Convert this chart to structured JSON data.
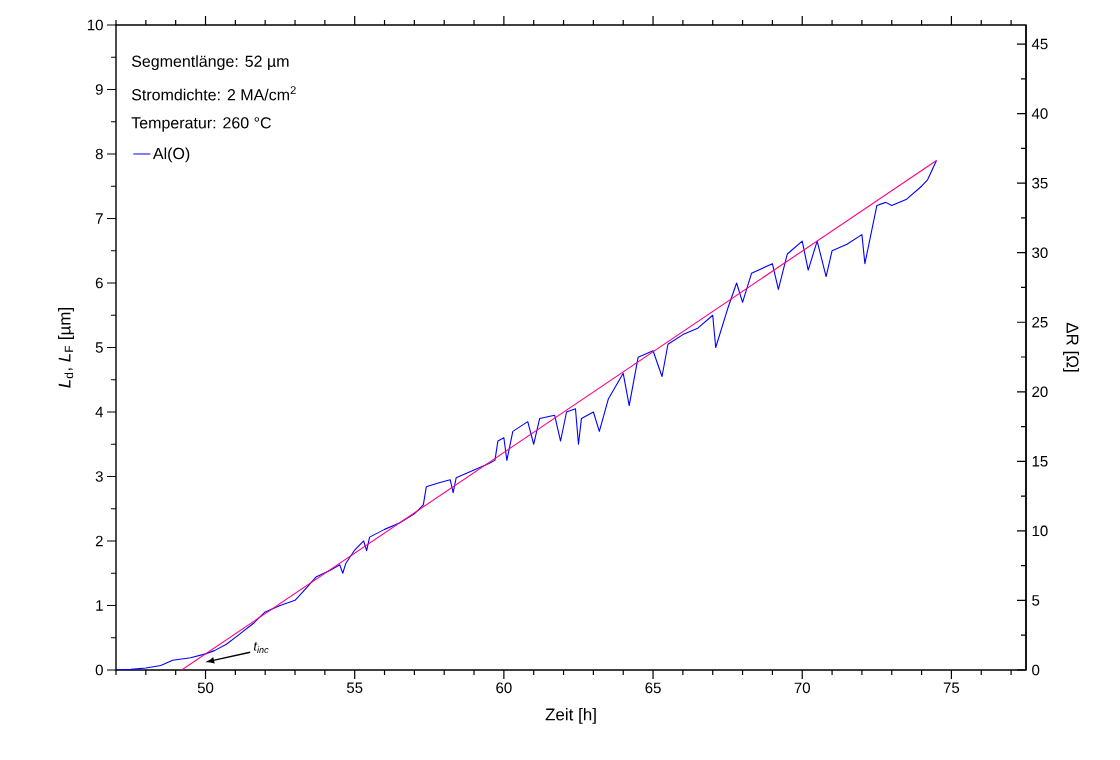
{
  "chart_data": {
    "type": "line",
    "xlabel": "Zeit [h]",
    "ylabel": "*L*$_{d}$, *L*$_{F}$ [µm]",
    "y2label": "ΔR [Ω]",
    "annotations": [
      "Segmentlänge: 52 µm",
      "Stromdichte: 2 MA/cm$^{2}$",
      "Temperatur: 260 °C",
      "t$_{inc}$"
    ],
    "legend": "top left",
    "marker": "none",
    "line_style": "solid",
    "grid": false,
    "xlim": [
      47,
      77.5
    ],
    "ylim": [
      0,
      10
    ],
    "y2lim": [
      0,
      46.37
    ],
    "xticks": [
      {
        "value": 47,
        "label": null
      },
      {
        "value": 48,
        "label": null
      },
      {
        "value": 49,
        "label": null
      },
      50,
      {
        "value": 51,
        "label": null
      },
      {
        "value": 52,
        "label": null
      },
      {
        "value": 53,
        "label": null
      },
      {
        "value": 54,
        "label": null
      },
      55,
      {
        "value": 56,
        "label": null
      },
      {
        "value": 57,
        "label": null
      },
      {
        "value": 58,
        "label": null
      },
      {
        "value": 59,
        "label": null
      },
      60,
      {
        "value": 61,
        "label": null
      },
      {
        "value": 62,
        "label": null
      },
      {
        "value": 63,
        "label": null
      },
      {
        "value": 64,
        "label": null
      },
      65,
      {
        "value": 66,
        "label": null
      },
      {
        "value": 67,
        "label": null
      },
      {
        "value": 68,
        "label": null
      },
      {
        "value": 69,
        "label": null
      },
      70,
      {
        "value": 71,
        "label": null
      },
      {
        "value": 72,
        "label": null
      },
      {
        "value": 73,
        "label": null
      },
      {
        "value": 74,
        "label": null
      },
      75,
      {
        "value": 76,
        "label": null
      },
      {
        "value": 77,
        "label": null
      }
    ],
    "yticks": [
      0,
      {
        "value": 0.5,
        "label": null
      },
      1,
      {
        "value": 1.5,
        "label": null
      },
      2,
      {
        "value": 2.5,
        "label": null
      },
      3,
      {
        "value": 3.5,
        "label": null
      },
      4,
      {
        "value": 4.5,
        "label": null
      },
      5,
      {
        "value": 5.5,
        "label": null
      },
      6,
      {
        "value": 6.5,
        "label": null
      },
      7,
      {
        "value": 7.5,
        "label": null
      },
      8,
      {
        "value": 8.5,
        "label": null
      },
      9,
      {
        "value": 9.5,
        "label": null
      },
      10
    ],
    "y2ticks": [
      0,
      {
        "value": 2.5,
        "label": null
      },
      5,
      {
        "value": 7.5,
        "label": null
      },
      10,
      {
        "value": 12.5,
        "label": null
      },
      15,
      {
        "value": 17.5,
        "label": null
      },
      20,
      {
        "value": 22.5,
        "label": null
      },
      25,
      {
        "value": 27.5,
        "label": null
      },
      30,
      {
        "value": 32.5,
        "label": null
      },
      35,
      {
        "value": 37.5,
        "label": null
      },
      40,
      {
        "value": 42.5,
        "label": null
      },
      45
    ],
    "series": [
      {
        "name": "Al(O)",
        "color": "#0000ff",
        "x": [
          47.0,
          47.5,
          48.0,
          48.5,
          48.9,
          49.5,
          50.0,
          50.3,
          50.7,
          51.1,
          51.6,
          52.0,
          52.5,
          53.0,
          53.4,
          53.7,
          54.2,
          54.5,
          54.6,
          54.7,
          55.0,
          55.3,
          55.4,
          55.5,
          56.0,
          56.5,
          57.0,
          57.3,
          57.4,
          57.8,
          58.2,
          58.3,
          58.4,
          59.0,
          59.5,
          59.7,
          59.8,
          60.0,
          60.1,
          60.3,
          60.8,
          61.0,
          61.2,
          61.7,
          61.9,
          62.1,
          62.4,
          62.5,
          62.6,
          63.0,
          63.2,
          63.5,
          64.0,
          64.2,
          64.5,
          65.0,
          65.3,
          65.5,
          66.0,
          66.5,
          67.0,
          67.1,
          67.5,
          67.8,
          68.0,
          68.3,
          69.0,
          69.2,
          69.5,
          70.0,
          70.2,
          70.5,
          70.8,
          71.0,
          71.5,
          72.0,
          72.1,
          72.5,
          72.8,
          73.0,
          73.5,
          74.0,
          74.2,
          74.5
        ],
        "values": [
          0.0,
          0.01,
          0.03,
          0.07,
          0.15,
          0.19,
          0.25,
          0.3,
          0.4,
          0.54,
          0.72,
          0.9,
          1.0,
          1.08,
          1.28,
          1.44,
          1.55,
          1.63,
          1.5,
          1.65,
          1.86,
          2.0,
          1.85,
          2.06,
          2.18,
          2.28,
          2.42,
          2.56,
          2.84,
          2.9,
          2.95,
          2.75,
          2.98,
          3.1,
          3.2,
          3.25,
          3.55,
          3.6,
          3.25,
          3.7,
          3.85,
          3.5,
          3.9,
          3.95,
          3.55,
          4.0,
          4.05,
          3.5,
          3.9,
          4.0,
          3.7,
          4.2,
          4.6,
          4.1,
          4.85,
          4.95,
          4.55,
          5.05,
          5.2,
          5.3,
          5.5,
          5.0,
          5.6,
          6.0,
          5.7,
          6.15,
          6.3,
          5.9,
          6.45,
          6.65,
          6.2,
          6.65,
          6.1,
          6.5,
          6.6,
          6.75,
          6.3,
          7.2,
          7.25,
          7.2,
          7.3,
          7.5,
          7.6,
          7.9
        ]
      },
      {
        "type": "line",
        "color": "#ff0080",
        "x": [
          49.2,
          74.5
        ],
        "values": [
          0.0,
          7.9
        ]
      }
    ]
  }
}
